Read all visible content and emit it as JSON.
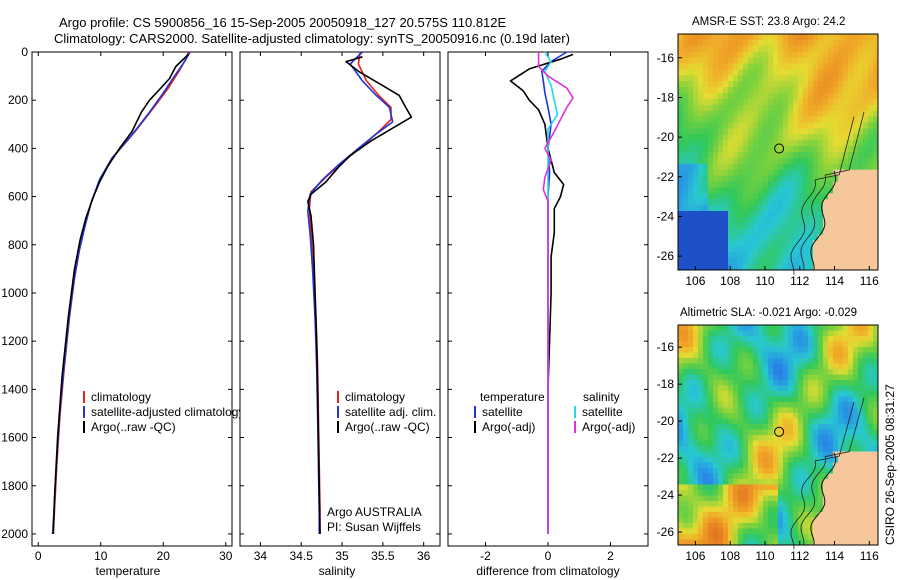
{
  "header": {
    "line1": "Argo profile: CS 5900856_16 15-Sep-2005 20050918_127 20.575S 110.812E",
    "line2": "Climatology: CARS2000. Satellite-adjusted climatology: synTS_20050916.nc (0.19d later)"
  },
  "depth_ticks": [
    "0",
    "200",
    "400",
    "600",
    "800",
    "1000",
    "1200",
    "1400",
    "1600",
    "1800",
    "2000"
  ],
  "colors": {
    "climatology": "#e8221c",
    "satellite": "#1f35d8",
    "argo": "#000000",
    "sal_sat": "#22d8e8",
    "sal_argo": "#e030e0",
    "land": "#f6c79b",
    "coast": "#111111"
  },
  "chart_data": [
    {
      "type": "line",
      "name": "temperature-profile",
      "xlabel": "temperature",
      "xlim": [
        -1,
        31
      ],
      "ylim": [
        0,
        2050
      ],
      "y_reversed": true,
      "x_ticks": [
        "0",
        "10",
        "20",
        "30"
      ],
      "legend_items": [
        "climatology",
        "satellite-adjusted climatology",
        "Argo(..raw -QC)"
      ],
      "series": [
        {
          "name": "climatology",
          "color": "#e8221c",
          "points": [
            [
              24.0,
              0
            ],
            [
              23.6,
              30
            ],
            [
              22.5,
              80
            ],
            [
              20.8,
              150
            ],
            [
              18.5,
              230
            ],
            [
              15.5,
              330
            ],
            [
              12.2,
              430
            ],
            [
              10.0,
              520
            ],
            [
              8.5,
              620
            ],
            [
              7.5,
              720
            ],
            [
              6.6,
              820
            ],
            [
              5.8,
              940
            ],
            [
              5.0,
              1100
            ],
            [
              4.2,
              1300
            ],
            [
              3.5,
              1500
            ],
            [
              3.0,
              1700
            ],
            [
              2.6,
              1900
            ],
            [
              2.4,
              2000
            ]
          ]
        },
        {
          "name": "satellite-adjusted climatology",
          "color": "#1f35d8",
          "points": [
            [
              24.3,
              0
            ],
            [
              23.4,
              40
            ],
            [
              21.8,
              100
            ],
            [
              20.0,
              170
            ],
            [
              17.8,
              250
            ],
            [
              14.8,
              350
            ],
            [
              11.8,
              440
            ],
            [
              9.8,
              530
            ],
            [
              8.4,
              630
            ],
            [
              7.4,
              730
            ],
            [
              6.5,
              830
            ],
            [
              5.7,
              950
            ],
            [
              4.9,
              1110
            ],
            [
              4.1,
              1310
            ],
            [
              3.4,
              1510
            ],
            [
              2.9,
              1710
            ],
            [
              2.5,
              1910
            ],
            [
              2.3,
              2000
            ]
          ]
        },
        {
          "name": "Argo(..raw -QC)",
          "color": "#000000",
          "points": [
            [
              24.0,
              10
            ],
            [
              22.0,
              60
            ],
            [
              21.0,
              110
            ],
            [
              19.6,
              150
            ],
            [
              17.8,
              200
            ],
            [
              16.5,
              250
            ],
            [
              15.0,
              330
            ],
            [
              13.0,
              400
            ],
            [
              11.2,
              470
            ],
            [
              9.8,
              540
            ],
            [
              8.7,
              610
            ],
            [
              7.6,
              690
            ],
            [
              6.7,
              780
            ],
            [
              5.8,
              900
            ],
            [
              4.8,
              1100
            ],
            [
              3.8,
              1350
            ],
            [
              3.1,
              1600
            ],
            [
              2.6,
              1850
            ],
            [
              2.4,
              2000
            ]
          ]
        }
      ]
    },
    {
      "type": "line",
      "name": "salinity-profile",
      "xlabel": "salinity",
      "xlim": [
        33.75,
        36.2
      ],
      "ylim": [
        0,
        2050
      ],
      "y_reversed": true,
      "x_ticks": [
        "34",
        "34.5",
        "35",
        "35.5",
        "36"
      ],
      "legend_items": [
        "climatology",
        "satellite adj. clim.",
        "Argo(..raw -QC)"
      ],
      "annotations": [
        "Argo AUSTRALIA",
        "PI: Susan Wijffels"
      ],
      "series": [
        {
          "name": "climatology",
          "color": "#e8221c",
          "points": [
            [
              35.22,
              0
            ],
            [
              35.2,
              50
            ],
            [
              35.3,
              120
            ],
            [
              35.45,
              180
            ],
            [
              35.6,
              230
            ],
            [
              35.6,
              280
            ],
            [
              35.45,
              330
            ],
            [
              35.25,
              390
            ],
            [
              35.0,
              460
            ],
            [
              34.8,
              520
            ],
            [
              34.62,
              580
            ],
            [
              34.6,
              650
            ],
            [
              34.62,
              750
            ],
            [
              34.65,
              900
            ],
            [
              34.68,
              1100
            ],
            [
              34.7,
              1300
            ],
            [
              34.71,
              1500
            ],
            [
              34.72,
              1700
            ],
            [
              34.73,
              1900
            ],
            [
              34.73,
              2000
            ]
          ]
        },
        {
          "name": "satellite adj. clim.",
          "color": "#1f35d8",
          "points": [
            [
              35.25,
              0
            ],
            [
              35.1,
              50
            ],
            [
              35.25,
              120
            ],
            [
              35.42,
              180
            ],
            [
              35.58,
              230
            ],
            [
              35.62,
              290
            ],
            [
              35.42,
              340
            ],
            [
              35.2,
              400
            ],
            [
              34.95,
              470
            ],
            [
              34.76,
              530
            ],
            [
              34.61,
              590
            ],
            [
              34.58,
              660
            ],
            [
              34.61,
              760
            ],
            [
              34.64,
              910
            ],
            [
              34.67,
              1110
            ],
            [
              34.69,
              1310
            ],
            [
              34.7,
              1510
            ],
            [
              34.71,
              1710
            ],
            [
              34.72,
              1910
            ],
            [
              34.72,
              2000
            ]
          ]
        },
        {
          "name": "Argo(..raw -QC)",
          "color": "#000000",
          "points": [
            [
              35.25,
              20
            ],
            [
              35.05,
              40
            ],
            [
              35.2,
              80
            ],
            [
              35.45,
              130
            ],
            [
              35.7,
              180
            ],
            [
              35.78,
              230
            ],
            [
              35.85,
              270
            ],
            [
              35.7,
              300
            ],
            [
              35.6,
              320
            ],
            [
              35.35,
              370
            ],
            [
              35.1,
              430
            ],
            [
              34.95,
              480
            ],
            [
              34.8,
              540
            ],
            [
              34.62,
              590
            ],
            [
              34.58,
              620
            ],
            [
              34.62,
              680
            ],
            [
              34.65,
              800
            ],
            [
              34.67,
              1000
            ],
            [
              34.69,
              1200
            ],
            [
              34.7,
              1400
            ],
            [
              34.71,
              1600
            ],
            [
              34.72,
              1800
            ],
            [
              34.73,
              2000
            ]
          ]
        }
      ]
    },
    {
      "type": "line",
      "name": "difference-from-climatology",
      "xlabel": "difference from climatology",
      "xlim": [
        -3.2,
        3.2
      ],
      "ylim": [
        0,
        2050
      ],
      "y_reversed": true,
      "x_ticks": [
        "-2",
        "0",
        "2"
      ],
      "legend_headers": [
        "temperature",
        "salinity"
      ],
      "legend_items": [
        "satellite",
        "Argo(-adj)",
        "satellite",
        "Argo(-adj)"
      ],
      "series": [
        {
          "name": "temperature satellite",
          "color": "#1f35d8",
          "points": [
            [
              0.6,
              0
            ],
            [
              0.1,
              40
            ],
            [
              -0.2,
              80
            ],
            [
              -0.15,
              120
            ],
            [
              -0.1,
              170
            ],
            [
              0.0,
              230
            ],
            [
              0.1,
              300
            ],
            [
              0.0,
              400
            ],
            [
              0.05,
              500
            ],
            [
              0.0,
              600
            ],
            [
              0.0,
              800
            ],
            [
              0.0,
              1000
            ],
            [
              0.0,
              1400
            ],
            [
              0.0,
              1800
            ],
            [
              0.0,
              2000
            ]
          ]
        },
        {
          "name": "temperature Argo(-adj)",
          "color": "#000000",
          "points": [
            [
              0.8,
              10
            ],
            [
              0.4,
              30
            ],
            [
              -0.6,
              70
            ],
            [
              -1.2,
              120
            ],
            [
              -0.8,
              160
            ],
            [
              -0.6,
              200
            ],
            [
              -0.3,
              240
            ],
            [
              -0.1,
              300
            ],
            [
              0.0,
              400
            ],
            [
              0.2,
              500
            ],
            [
              0.5,
              550
            ],
            [
              0.4,
              600
            ],
            [
              0.2,
              650
            ],
            [
              0.2,
              750
            ],
            [
              0.1,
              850
            ],
            [
              0.1,
              1000
            ],
            [
              0.0,
              1400
            ],
            [
              0.0,
              1800
            ],
            [
              0.0,
              2000
            ]
          ]
        },
        {
          "name": "salinity satellite",
          "color": "#22d8e8",
          "points": [
            [
              -0.1,
              0
            ],
            [
              0.1,
              40
            ],
            [
              -0.1,
              80
            ],
            [
              0.1,
              140
            ],
            [
              0.2,
              200
            ],
            [
              0.3,
              260
            ],
            [
              0.0,
              320
            ],
            [
              0.0,
              400
            ],
            [
              0.0,
              500
            ],
            [
              0.0,
              700
            ],
            [
              0.0,
              1000
            ],
            [
              0.0,
              1500
            ],
            [
              0.0,
              2000
            ]
          ]
        },
        {
          "name": "salinity Argo(-adj)",
          "color": "#e030e0",
          "points": [
            [
              -0.3,
              0
            ],
            [
              -0.3,
              60
            ],
            [
              0.0,
              100
            ],
            [
              0.6,
              150
            ],
            [
              0.8,
              190
            ],
            [
              0.6,
              230
            ],
            [
              0.4,
              280
            ],
            [
              0.2,
              330
            ],
            [
              -0.1,
              400
            ],
            [
              0.1,
              450
            ],
            [
              -0.1,
              520
            ],
            [
              -0.15,
              570
            ],
            [
              0.0,
              620
            ],
            [
              0.0,
              700
            ],
            [
              0.0,
              1000
            ],
            [
              0.0,
              1500
            ],
            [
              0.0,
              2000
            ]
          ]
        }
      ]
    },
    {
      "type": "heatmap",
      "name": "amsr-sst-map",
      "title": "AMSR-E SST: 23.8 Argo: 24.2",
      "xlim": [
        105,
        116.5
      ],
      "ylim": [
        -26.7,
        -14.8
      ],
      "x_ticks": [
        "106",
        "108",
        "110",
        "112",
        "114",
        "116"
      ],
      "y_ticks": [
        "-16",
        "-18",
        "-20",
        "-22",
        "-24",
        "-26"
      ],
      "marker": [
        110.812,
        -20.575
      ]
    },
    {
      "type": "heatmap",
      "name": "altimetric-sla-map",
      "title": "Altimetric SLA: -0.021 Argo: -0.029",
      "xlim": [
        105,
        116.5
      ],
      "ylim": [
        -26.7,
        -14.8
      ],
      "x_ticks": [
        "106",
        "108",
        "110",
        "112",
        "114",
        "116"
      ],
      "y_ticks": [
        "-16",
        "-18",
        "-20",
        "-22",
        "-24",
        "-26"
      ],
      "marker": [
        110.812,
        -20.575
      ]
    }
  ],
  "side_caption": "CSIRO 26-Sep-2005 08:31:27"
}
